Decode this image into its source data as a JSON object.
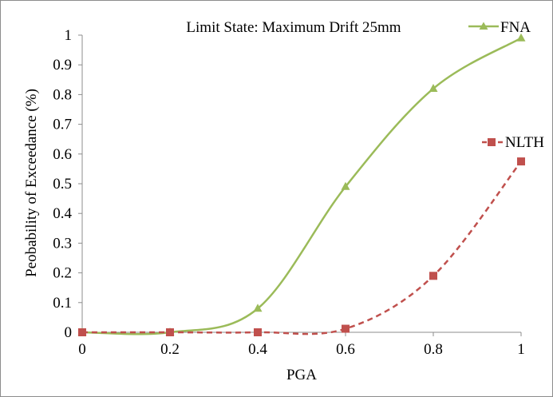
{
  "chart_data": {
    "type": "line",
    "title": "Limit State: Maximum Drift 25mm",
    "xlabel": "PGA",
    "ylabel": "Peobability of Exceedance (%)",
    "xlim": [
      0,
      1
    ],
    "ylim": [
      0,
      1
    ],
    "x_ticks": [
      "0",
      "0.2",
      "0.4",
      "0.6",
      "0.8",
      "1"
    ],
    "y_ticks": [
      "0",
      "0.1",
      "0.2",
      "0.3",
      "0.4",
      "0.5",
      "0.6",
      "0.7",
      "0.8",
      "0.9",
      "1"
    ],
    "grid": false,
    "series": [
      {
        "name": "FNA",
        "color": "#9bbb59",
        "marker": "triangle",
        "line_style": "solid",
        "smooth": true,
        "x": [
          0,
          0.2,
          0.4,
          0.6,
          0.8,
          1.0
        ],
        "values": [
          0,
          0,
          0.08,
          0.49,
          0.82,
          0.99
        ]
      },
      {
        "name": "NLTH",
        "color": "#c0504d",
        "marker": "square",
        "line_style": "dashed",
        "smooth": true,
        "x": [
          0,
          0.2,
          0.4,
          0.6,
          0.8,
          1.0
        ],
        "values": [
          0,
          0,
          0,
          0.012,
          0.19,
          0.575
        ]
      }
    ],
    "legend": [
      {
        "label": "FNA",
        "placement": "top-right"
      },
      {
        "label": "NLTH",
        "placement": "right"
      }
    ]
  }
}
